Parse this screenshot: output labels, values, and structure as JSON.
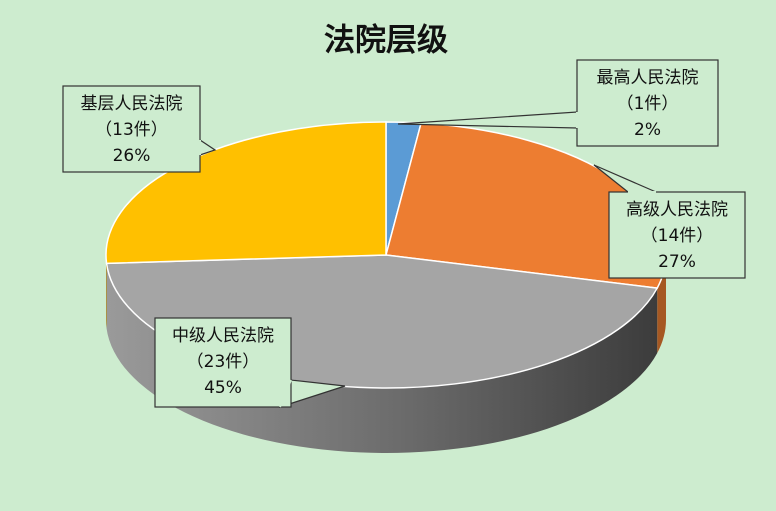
{
  "chart_data": {
    "type": "pie3d",
    "title": "法院层级",
    "categories": [
      "最高人民法院",
      "高级人民法院",
      "中级人民法院",
      "基层人民法院"
    ],
    "values": [
      2,
      27,
      45,
      26
    ],
    "value_labels": [
      "2%",
      "27%",
      "45%",
      "26%"
    ],
    "counts": [
      1,
      14,
      23,
      13
    ],
    "count_labels": [
      "（1件）",
      "（14件）",
      "（23件）",
      "（13件）"
    ],
    "colors": [
      "#5b9bd5",
      "#ed7d31",
      "#a5a5a5",
      "#ffc000"
    ]
  }
}
